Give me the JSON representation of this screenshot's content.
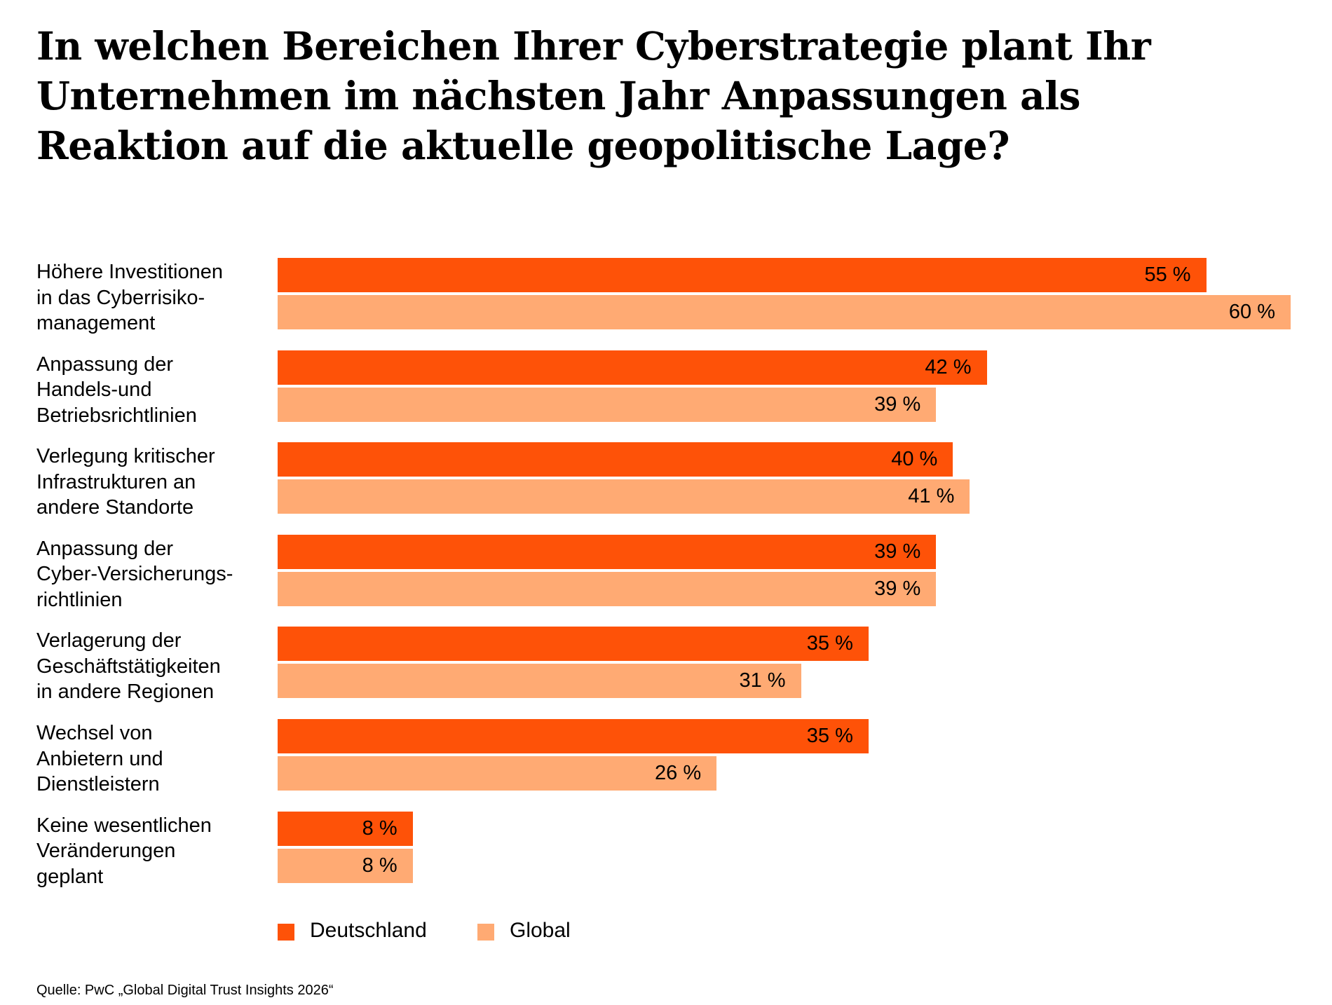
{
  "chart_data": {
    "type": "bar",
    "orientation": "horizontal",
    "title": "In welchen Bereichen Ihrer Cyberstrategie plant Ihr Unternehmen im nächsten Jahr Anpassungen als Reaktion auf die aktuelle geopolitische Lage?",
    "categories": [
      "Höhere Investitionen\nin das Cyberrisiko-\nmanagement",
      "Anpassung der\nHandels-und\nBetriebsrichtlinien",
      "Verlegung kritischer\nInfrastrukturen an\nandere Standorte",
      "Anpassung der\nCyber-Versicherungs-\nrichtlinien",
      "Verlagerung der\nGeschäftstätigkeiten\nin andere Regionen",
      "Wechsel von\nAnbietern und\nDienstleistern",
      "Keine wesentlichen\nVeränderungen\ngeplant"
    ],
    "series": [
      {
        "name": "Deutschland",
        "color": "#FE5208",
        "values": [
          55,
          42,
          40,
          39,
          35,
          35,
          8
        ]
      },
      {
        "name": "Global",
        "color": "#FFAA73",
        "values": [
          60,
          39,
          41,
          39,
          31,
          26,
          8
        ]
      }
    ],
    "value_suffix": " %",
    "xlim": [
      0,
      60
    ],
    "grid": false,
    "legend": "bottom-left",
    "source": "Quelle: PwC „Global Digital Trust Insights 2026“"
  }
}
